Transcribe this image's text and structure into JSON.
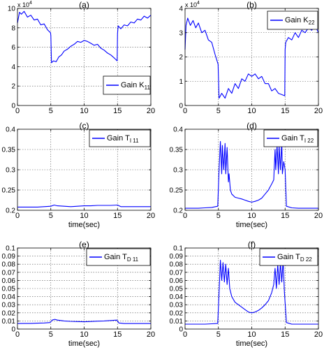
{
  "chart_data": [
    {
      "type": "line",
      "panel_label": "(a)",
      "xlabel": "",
      "ylabel": "",
      "xlim": [
        0,
        20
      ],
      "ylim": [
        0,
        10
      ],
      "x_ticks": [
        "0",
        "5",
        "10",
        "15",
        "20"
      ],
      "y_ticks": [
        "0",
        "2",
        "4",
        "6",
        "8",
        "10"
      ],
      "y_exponent": "x 10",
      "y_exponent_power": "4",
      "grid": true,
      "legend_position": "bottom-right",
      "series": [
        {
          "name": "Gain K",
          "name_sub": "11",
          "color": "#0000FF",
          "x": [
            0,
            0.3,
            0.6,
            1,
            1.5,
            2,
            2.5,
            3,
            3.5,
            4,
            4.5,
            4.95,
            5.0,
            5.1,
            5.4,
            5.8,
            6.2,
            6.6,
            7,
            7.5,
            8,
            8.5,
            9,
            9.5,
            10,
            10.5,
            11,
            11.5,
            12,
            12.5,
            13,
            13.5,
            14,
            14.5,
            14.95,
            15.0,
            15.1,
            15.5,
            16,
            16.5,
            17,
            17.5,
            18,
            18.5,
            19,
            19.5,
            20
          ],
          "values": [
            8.5,
            9.6,
            9.4,
            9.7,
            9.1,
            9.3,
            8.8,
            8.9,
            8.3,
            8.4,
            7.8,
            7.5,
            7.2,
            4.4,
            4.6,
            4.5,
            5.0,
            5.2,
            5.6,
            5.8,
            6.1,
            6.3,
            6.6,
            6.5,
            6.7,
            6.6,
            6.4,
            6.2,
            6.3,
            5.9,
            5.7,
            5.4,
            5.2,
            4.9,
            4.6,
            7.4,
            8.2,
            7.9,
            8.3,
            8.2,
            8.6,
            8.5,
            8.9,
            8.8,
            9.2,
            9.0,
            9.3
          ]
        }
      ]
    },
    {
      "type": "line",
      "panel_label": "(b)",
      "xlabel": "",
      "ylabel": "",
      "xlim": [
        0,
        20
      ],
      "ylim": [
        0,
        4
      ],
      "x_ticks": [
        "0",
        "5",
        "10",
        "15",
        "20"
      ],
      "y_ticks": [
        "0",
        "1",
        "2",
        "3",
        "4"
      ],
      "y_exponent": "x 10",
      "y_exponent_power": "4",
      "grid": true,
      "legend_position": "top-right",
      "series": [
        {
          "name": "Gain K",
          "name_sub": "22",
          "color": "#0000FF",
          "x": [
            0,
            0.15,
            0.4,
            0.8,
            1.2,
            1.6,
            2,
            2.5,
            3,
            3.5,
            4,
            4.5,
            4.95,
            5.0,
            5.1,
            5.5,
            6,
            6.5,
            7,
            7.5,
            8,
            8.5,
            9,
            9.5,
            10,
            10.5,
            11,
            11.5,
            12,
            12.5,
            13,
            13.5,
            14,
            14.5,
            14.95,
            15.0,
            15.1,
            15.5,
            16,
            16.5,
            17,
            17.5,
            18,
            18.5,
            19,
            19.5,
            20
          ],
          "values": [
            2.3,
            3.3,
            3.6,
            3.3,
            3.5,
            3.2,
            3.4,
            3.0,
            3.1,
            2.7,
            2.6,
            2.1,
            1.7,
            1.2,
            0.3,
            0.5,
            0.3,
            0.7,
            0.5,
            0.9,
            0.7,
            1.1,
            1.0,
            1.3,
            1.2,
            1.3,
            1.1,
            1.2,
            0.9,
            0.9,
            0.6,
            0.7,
            0.5,
            0.45,
            0.4,
            2.3,
            2.6,
            2.8,
            2.7,
            3.0,
            2.8,
            3.1,
            3.0,
            3.2,
            3.1,
            3.3,
            3.0
          ]
        }
      ]
    },
    {
      "type": "line",
      "panel_label": "(c)",
      "xlabel": "time(sec)",
      "ylabel": "",
      "xlim": [
        0,
        20
      ],
      "ylim": [
        0.2,
        0.4
      ],
      "x_ticks": [
        "0",
        "5",
        "10",
        "15",
        "20"
      ],
      "y_ticks": [
        "0.2",
        "0.25",
        "0.3",
        "0.35",
        "0.4"
      ],
      "grid": true,
      "legend_position": "top-right",
      "series": [
        {
          "name": "Gain T",
          "name_sub": "I 11",
          "color": "#0000FF",
          "x": [
            0,
            1,
            2,
            3,
            4,
            5,
            5.5,
            6,
            7,
            8,
            9,
            10,
            11,
            12,
            13,
            14,
            15,
            15.5,
            16,
            17,
            18,
            19,
            20
          ],
          "values": [
            0.208,
            0.208,
            0.208,
            0.208,
            0.209,
            0.21,
            0.213,
            0.211,
            0.21,
            0.209,
            0.21,
            0.211,
            0.211,
            0.212,
            0.212,
            0.212,
            0.213,
            0.209,
            0.209,
            0.209,
            0.209,
            0.209,
            0.209
          ]
        }
      ]
    },
    {
      "type": "line",
      "panel_label": "(d)",
      "xlabel": "time(sec)",
      "ylabel": "",
      "xlim": [
        0,
        20
      ],
      "ylim": [
        0.2,
        0.4
      ],
      "x_ticks": [
        "0",
        "5",
        "10",
        "15",
        "20"
      ],
      "y_ticks": [
        "0.2",
        "0.25",
        "0.3",
        "0.35",
        "0.4"
      ],
      "grid": true,
      "legend_position": "top-right",
      "series": [
        {
          "name": "Gain T",
          "name_sub": "I 22",
          "color": "#0000FF",
          "x": [
            0,
            1,
            2,
            3,
            4,
            4.9,
            5.1,
            5.3,
            5.5,
            5.6,
            5.8,
            6.0,
            6.1,
            6.3,
            6.5,
            6.6,
            6.8,
            7.0,
            7.5,
            8,
            8.5,
            9,
            9.5,
            10,
            10.5,
            11,
            11.5,
            12,
            12.5,
            13,
            13.3,
            13.5,
            13.6,
            13.8,
            14.0,
            14.1,
            14.3,
            14.5,
            14.6,
            14.8,
            15.0,
            15.2,
            16,
            17,
            18,
            19,
            20
          ],
          "values": [
            0.205,
            0.205,
            0.205,
            0.206,
            0.207,
            0.21,
            0.3,
            0.37,
            0.29,
            0.36,
            0.3,
            0.365,
            0.29,
            0.355,
            0.27,
            0.29,
            0.25,
            0.24,
            0.232,
            0.23,
            0.228,
            0.225,
            0.222,
            0.22,
            0.222,
            0.225,
            0.23,
            0.24,
            0.25,
            0.265,
            0.275,
            0.35,
            0.3,
            0.36,
            0.29,
            0.36,
            0.3,
            0.37,
            0.29,
            0.32,
            0.3,
            0.21,
            0.206,
            0.205,
            0.205,
            0.205,
            0.205
          ]
        }
      ]
    },
    {
      "type": "line",
      "panel_label": "(e)",
      "xlabel": "time(sec)",
      "ylabel": "",
      "xlim": [
        0,
        20
      ],
      "ylim": [
        0,
        0.1
      ],
      "x_ticks": [
        "0",
        "5",
        "10",
        "15",
        "20"
      ],
      "y_ticks": [
        "0",
        "0.01",
        "0.02",
        "0.03",
        "0.04",
        "0.05",
        "0.06",
        "0.07",
        "0.08",
        "0.09",
        "0.1"
      ],
      "grid": true,
      "legend_position": "top-right",
      "series": [
        {
          "name": "Gain T",
          "name_sub": "D 11",
          "color": "#0000FF",
          "x": [
            0,
            1,
            2,
            3,
            4,
            4.9,
            5.2,
            5.6,
            6,
            7,
            8,
            9,
            10,
            11,
            12,
            13,
            14,
            14.9,
            15.2,
            16,
            17,
            18,
            19,
            20
          ],
          "values": [
            0.0068,
            0.007,
            0.007,
            0.0072,
            0.0075,
            0.008,
            0.011,
            0.012,
            0.011,
            0.01,
            0.0095,
            0.0092,
            0.009,
            0.0093,
            0.0097,
            0.01,
            0.0105,
            0.011,
            0.0075,
            0.0068,
            0.0068,
            0.0068,
            0.0068,
            0.0068
          ]
        }
      ]
    },
    {
      "type": "line",
      "panel_label": "(f)",
      "xlabel": "time(sec)",
      "ylabel": "",
      "xlim": [
        0,
        20
      ],
      "ylim": [
        0,
        0.1
      ],
      "x_ticks": [
        "0",
        "5",
        "10",
        "15",
        "20"
      ],
      "y_ticks": [
        "0",
        "0.01",
        "0.02",
        "0.03",
        "0.04",
        "0.05",
        "0.06",
        "0.07",
        "0.08",
        "0.09",
        "0.1"
      ],
      "grid": true,
      "legend_position": "top-right",
      "series": [
        {
          "name": "Gain T",
          "name_sub": "D 22",
          "color": "#0000FF",
          "x": [
            0,
            1,
            2,
            3,
            4,
            4.9,
            5.1,
            5.3,
            5.5,
            5.7,
            5.9,
            6.1,
            6.3,
            6.5,
            6.7,
            7.0,
            7.5,
            8,
            8.5,
            9,
            9.5,
            10,
            10.5,
            11,
            11.5,
            12,
            12.5,
            13,
            13.3,
            13.5,
            13.7,
            13.9,
            14.1,
            14.3,
            14.5,
            14.7,
            14.9,
            15.2,
            16,
            17,
            18,
            19,
            20
          ],
          "values": [
            0.006,
            0.006,
            0.006,
            0.006,
            0.0065,
            0.007,
            0.045,
            0.085,
            0.06,
            0.082,
            0.058,
            0.08,
            0.055,
            0.075,
            0.05,
            0.04,
            0.033,
            0.03,
            0.027,
            0.024,
            0.021,
            0.02,
            0.021,
            0.023,
            0.026,
            0.03,
            0.035,
            0.045,
            0.055,
            0.075,
            0.05,
            0.08,
            0.055,
            0.082,
            0.058,
            0.085,
            0.045,
            0.008,
            0.006,
            0.006,
            0.006,
            0.006,
            0.006
          ]
        }
      ]
    }
  ]
}
